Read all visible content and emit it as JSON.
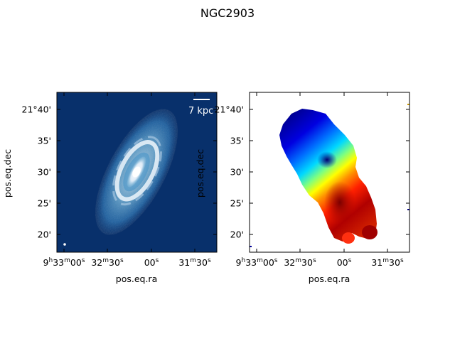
{
  "figure": {
    "title": "NGC2903"
  },
  "chart_data": [
    {
      "type": "heatmap",
      "name": "intensity-map",
      "colormap": "Blues_r",
      "colors": {
        "background": "#08306b",
        "peak": "#f7fbff"
      },
      "xlabel": "pos.eq.ra",
      "ylabel": "pos.eq.dec",
      "x_ticks": [
        {
          "h": "9",
          "m": "33",
          "s": "00",
          "show_hm": true
        },
        {
          "h": "",
          "m": "32",
          "s": "30",
          "show_hm": "m"
        },
        {
          "h": "",
          "m": "",
          "s": "00",
          "show_hm": false
        },
        {
          "h": "",
          "m": "31",
          "s": "30",
          "show_hm": "m"
        }
      ],
      "y_ticks": [
        "21°40'",
        "35'",
        "30'",
        "25'",
        "20'"
      ],
      "scalebar_label": "7 kpc",
      "grid": false
    },
    {
      "type": "heatmap",
      "name": "velocity-map",
      "colormap": "jet",
      "colors": {
        "low": "#00008b",
        "mid": "#7fff7f",
        "high": "#8b0000"
      },
      "xlabel": "pos.eq.ra",
      "ylabel": "pos.eq.dec",
      "x_ticks": [
        {
          "h": "9",
          "m": "33",
          "s": "00",
          "show_hm": true
        },
        {
          "h": "",
          "m": "32",
          "s": "30",
          "show_hm": "m"
        },
        {
          "h": "",
          "m": "",
          "s": "00",
          "show_hm": false
        },
        {
          "h": "",
          "m": "31",
          "s": "30",
          "show_hm": "m"
        }
      ],
      "y_ticks": [
        "21°40'",
        "35'",
        "30'",
        "25'",
        "20'"
      ],
      "grid": false
    }
  ]
}
